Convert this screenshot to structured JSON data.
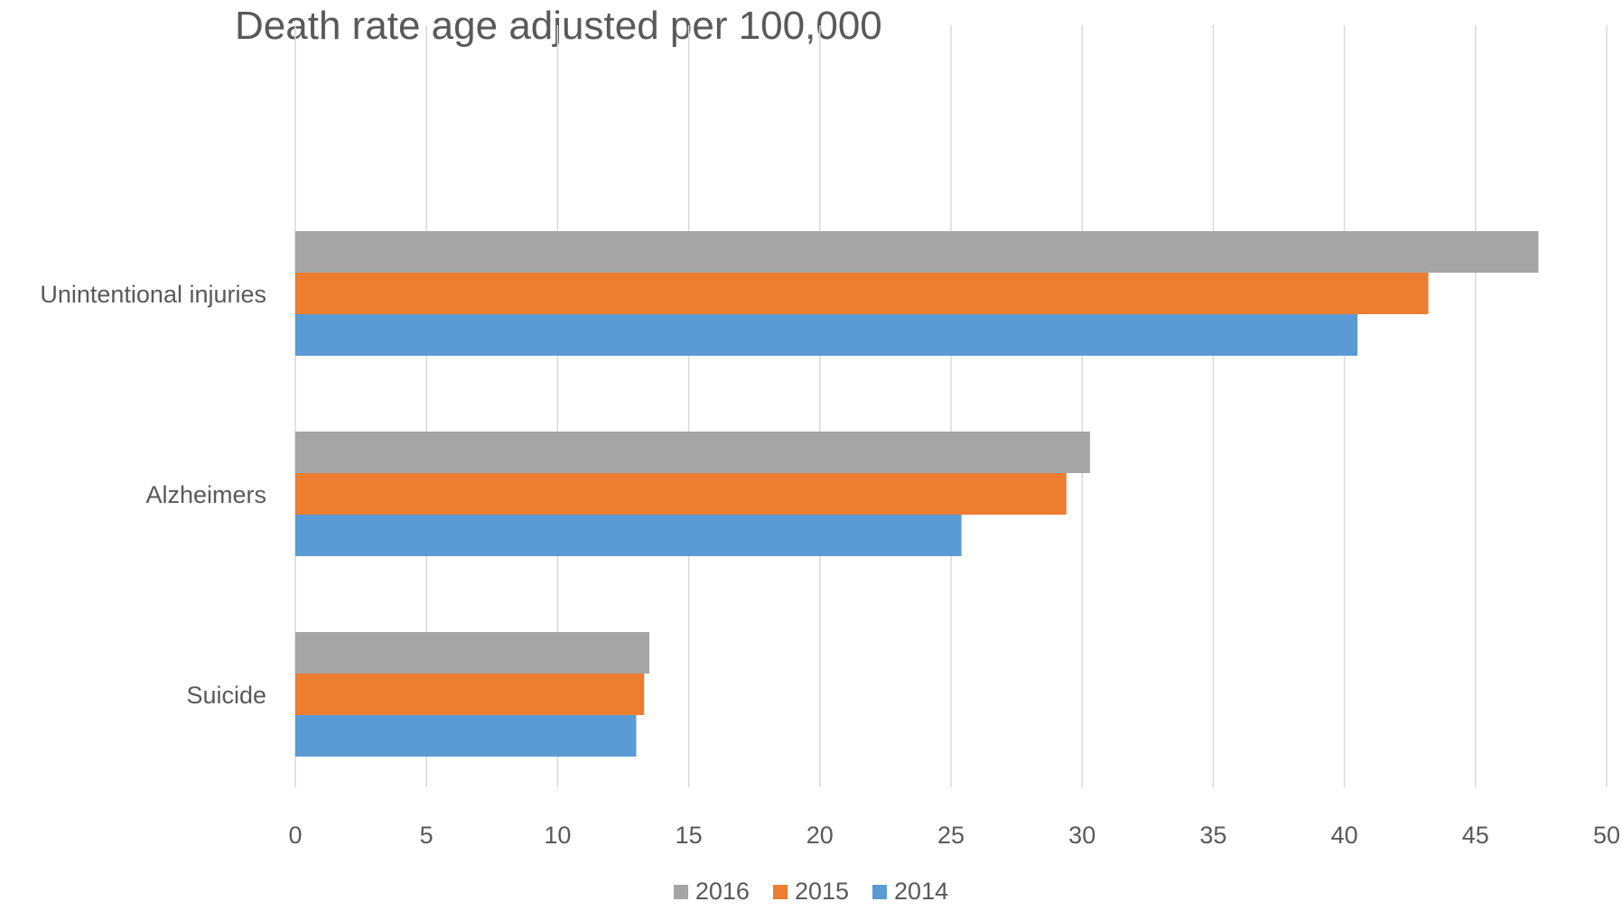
{
  "chart_data": {
    "type": "bar",
    "orientation": "horizontal",
    "title": "Death rate age adjusted per 100,000",
    "categories": [
      "Unintentional injuries",
      "Alzheimers",
      "Suicide"
    ],
    "series": [
      {
        "name": "2016",
        "color": "#A5A5A5",
        "values": [
          47.4,
          30.3,
          13.5
        ]
      },
      {
        "name": "2015",
        "color": "#ED7D31",
        "values": [
          43.2,
          29.4,
          13.3
        ]
      },
      {
        "name": "2014",
        "color": "#5B9BD5",
        "values": [
          40.5,
          25.4,
          13.0
        ]
      }
    ],
    "xlim": [
      0,
      50
    ],
    "x_ticks": [
      "0",
      "5",
      "10",
      "15",
      "20",
      "25",
      "30",
      "35",
      "40",
      "45",
      "50"
    ],
    "xlabel": "",
    "ylabel": "",
    "grid": "vertical",
    "legend_position": "bottom"
  }
}
